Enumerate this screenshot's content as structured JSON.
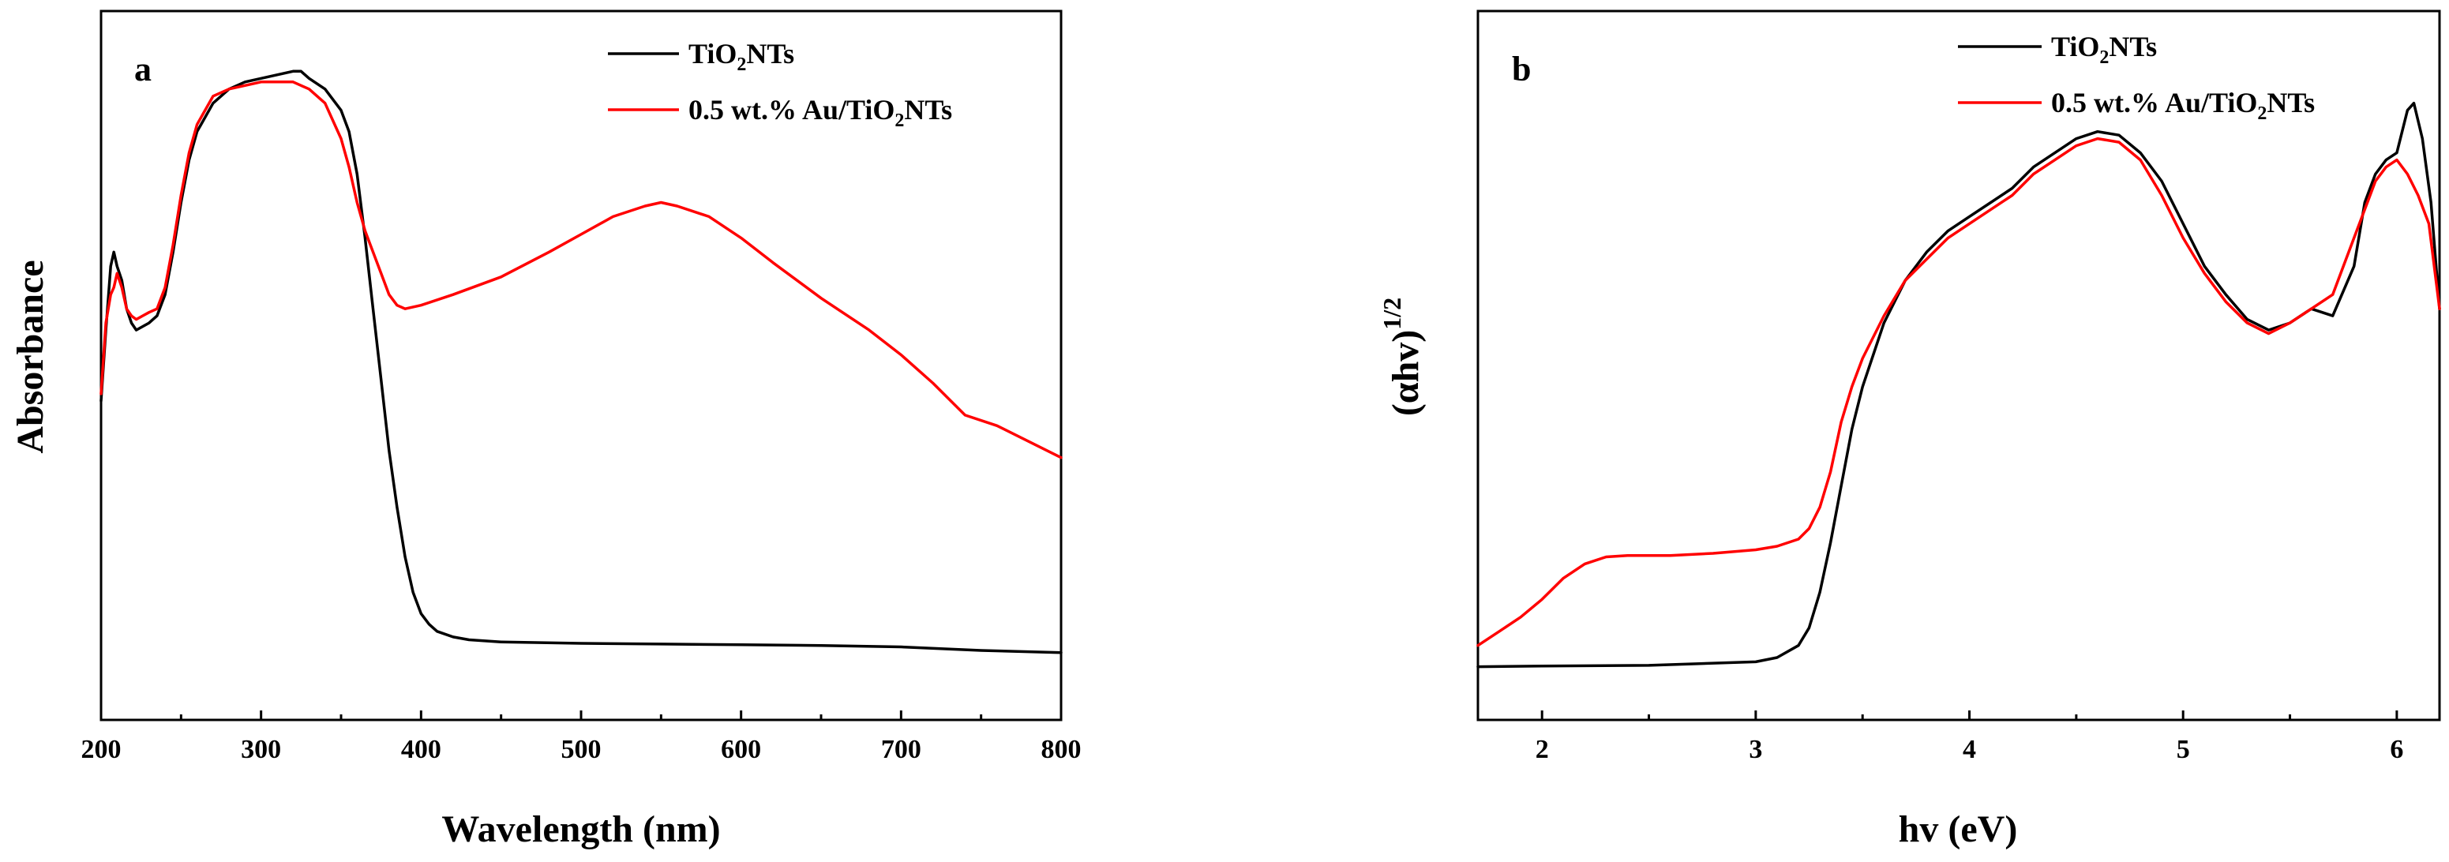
{
  "chart_data": [
    {
      "type": "line",
      "panel_label": "a",
      "xlabel": "Wavelength (nm)",
      "ylabel": "Absorbance",
      "xlim": [
        200,
        800
      ],
      "ylim": [
        0,
        1
      ],
      "xticks": [
        200,
        300,
        400,
        500,
        600,
        700,
        800
      ],
      "xtick_labels": [
        "200",
        "300",
        "400",
        "500",
        "600",
        "700",
        "800"
      ],
      "yticks_shown": false,
      "legend_position": "top-right",
      "series": [
        {
          "name": "TiO2NTs",
          "legend_label": {
            "pre": "TiO",
            "sub": "2",
            "post": "NTs"
          },
          "color": "#000000",
          "x": [
            200,
            203,
            206,
            208,
            210,
            213,
            216,
            219,
            222,
            226,
            230,
            235,
            240,
            245,
            250,
            255,
            260,
            270,
            280,
            290,
            300,
            310,
            320,
            325,
            330,
            340,
            350,
            355,
            360,
            365,
            370,
            375,
            380,
            385,
            390,
            395,
            400,
            405,
            410,
            420,
            430,
            450,
            500,
            550,
            600,
            650,
            700,
            750,
            800
          ],
          "y": [
            0.45,
            0.55,
            0.64,
            0.66,
            0.64,
            0.62,
            0.58,
            0.56,
            0.55,
            0.555,
            0.56,
            0.57,
            0.6,
            0.66,
            0.73,
            0.79,
            0.83,
            0.87,
            0.89,
            0.9,
            0.905,
            0.91,
            0.915,
            0.915,
            0.905,
            0.89,
            0.86,
            0.83,
            0.77,
            0.68,
            0.58,
            0.48,
            0.38,
            0.3,
            0.23,
            0.18,
            0.15,
            0.135,
            0.125,
            0.117,
            0.113,
            0.11,
            0.108,
            0.107,
            0.106,
            0.105,
            0.103,
            0.098,
            0.095
          ]
        },
        {
          "name": "0.5 wt.% Au/TiO2NTs",
          "legend_label": {
            "pre": "0.5 wt.% Au/TiO",
            "sub": "2",
            "post": "NTs"
          },
          "color": "#ff0000",
          "x": [
            200,
            203,
            206,
            208,
            210,
            213,
            216,
            219,
            222,
            226,
            230,
            235,
            240,
            245,
            250,
            255,
            260,
            270,
            280,
            290,
            300,
            310,
            320,
            325,
            330,
            340,
            350,
            355,
            360,
            365,
            370,
            375,
            380,
            385,
            390,
            400,
            420,
            450,
            480,
            500,
            520,
            540,
            550,
            560,
            580,
            600,
            620,
            650,
            680,
            700,
            720,
            740,
            760,
            800
          ],
          "y": [
            0.46,
            0.56,
            0.6,
            0.61,
            0.63,
            0.61,
            0.58,
            0.57,
            0.565,
            0.57,
            0.575,
            0.58,
            0.61,
            0.67,
            0.74,
            0.8,
            0.84,
            0.88,
            0.89,
            0.895,
            0.9,
            0.9,
            0.9,
            0.895,
            0.89,
            0.87,
            0.82,
            0.78,
            0.73,
            0.69,
            0.66,
            0.63,
            0.6,
            0.585,
            0.58,
            0.585,
            0.6,
            0.625,
            0.66,
            0.685,
            0.71,
            0.725,
            0.73,
            0.725,
            0.71,
            0.68,
            0.645,
            0.595,
            0.55,
            0.515,
            0.475,
            0.43,
            0.415,
            0.37
          ]
        }
      ]
    },
    {
      "type": "line",
      "panel_label": "b",
      "xlabel": "hv (eV)",
      "ylabel": {
        "base": "(αhv)",
        "sup": "1/2"
      },
      "xlim": [
        1.7,
        6.2
      ],
      "ylim": [
        0,
        1
      ],
      "xticks": [
        2,
        3,
        4,
        5,
        6
      ],
      "xtick_labels": [
        "2",
        "3",
        "4",
        "5",
        "6"
      ],
      "yticks_shown": false,
      "legend_position": "top-right",
      "series": [
        {
          "name": "TiO2NTs",
          "legend_label": {
            "pre": "TiO",
            "sub": "2",
            "post": "NTs"
          },
          "color": "#000000",
          "x": [
            1.7,
            2.0,
            2.5,
            3.0,
            3.1,
            3.2,
            3.25,
            3.3,
            3.35,
            3.4,
            3.45,
            3.5,
            3.6,
            3.7,
            3.8,
            3.9,
            4.0,
            4.1,
            4.2,
            4.3,
            4.4,
            4.5,
            4.6,
            4.7,
            4.8,
            4.9,
            5.0,
            5.1,
            5.2,
            5.3,
            5.4,
            5.5,
            5.6,
            5.7,
            5.8,
            5.85,
            5.9,
            5.95,
            6.0,
            6.05,
            6.08,
            6.12,
            6.16,
            6.2
          ],
          "y": [
            0.075,
            0.076,
            0.077,
            0.082,
            0.088,
            0.105,
            0.13,
            0.18,
            0.25,
            0.33,
            0.41,
            0.47,
            0.56,
            0.62,
            0.66,
            0.69,
            0.71,
            0.73,
            0.75,
            0.78,
            0.8,
            0.82,
            0.83,
            0.825,
            0.8,
            0.76,
            0.7,
            0.64,
            0.6,
            0.565,
            0.55,
            0.56,
            0.58,
            0.57,
            0.64,
            0.73,
            0.77,
            0.79,
            0.8,
            0.86,
            0.87,
            0.82,
            0.73,
            0.58
          ]
        },
        {
          "name": "0.5 wt.% Au/TiO2NTs",
          "legend_label": {
            "pre": "0.5 wt.% Au/TiO",
            "sub": "2",
            "post": "NTs"
          },
          "color": "#ff0000",
          "x": [
            1.7,
            1.8,
            1.9,
            2.0,
            2.1,
            2.2,
            2.3,
            2.4,
            2.6,
            2.8,
            3.0,
            3.1,
            3.2,
            3.25,
            3.3,
            3.35,
            3.4,
            3.45,
            3.5,
            3.6,
            3.7,
            3.8,
            3.9,
            4.0,
            4.1,
            4.2,
            4.3,
            4.4,
            4.5,
            4.6,
            4.7,
            4.8,
            4.9,
            5.0,
            5.1,
            5.2,
            5.3,
            5.4,
            5.5,
            5.6,
            5.7,
            5.8,
            5.85,
            5.9,
            5.95,
            6.0,
            6.05,
            6.1,
            6.15,
            6.2
          ],
          "y": [
            0.105,
            0.125,
            0.145,
            0.17,
            0.2,
            0.22,
            0.23,
            0.232,
            0.232,
            0.235,
            0.24,
            0.245,
            0.255,
            0.27,
            0.3,
            0.35,
            0.42,
            0.47,
            0.51,
            0.57,
            0.62,
            0.65,
            0.68,
            0.7,
            0.72,
            0.74,
            0.77,
            0.79,
            0.81,
            0.82,
            0.815,
            0.79,
            0.74,
            0.68,
            0.63,
            0.59,
            0.56,
            0.545,
            0.56,
            0.58,
            0.6,
            0.68,
            0.72,
            0.76,
            0.78,
            0.79,
            0.77,
            0.74,
            0.7,
            0.58
          ]
        }
      ]
    }
  ]
}
